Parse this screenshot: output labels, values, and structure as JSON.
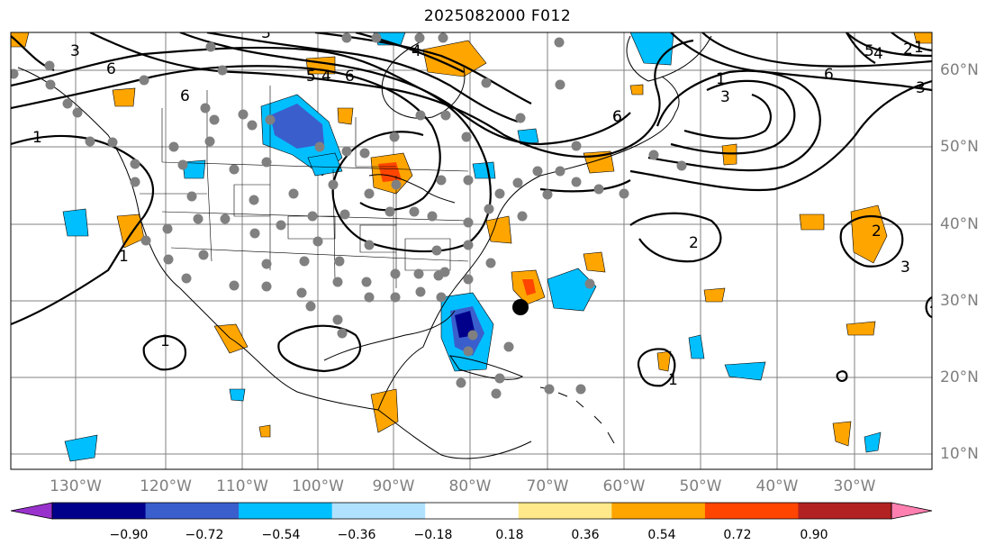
{
  "title": "2025082000 F012",
  "longitude_labels": [
    "130°W",
    "120°W",
    "110°W",
    "100°W",
    "90°W",
    "80°W",
    "70°W",
    "60°W",
    "50°W",
    "40°W",
    "30°W"
  ],
  "latitude_labels": [
    "60°N",
    "50°N",
    "40°N",
    "30°N",
    "20°N",
    "10°N"
  ],
  "colorbar": {
    "ticks": [
      "−0.90",
      "−0.72",
      "−0.54",
      "−0.36",
      "−0.18",
      "0.18",
      "0.36",
      "0.54",
      "0.72",
      "0.90"
    ],
    "colors": [
      "#9932cc",
      "#00008b",
      "#3a5fcd",
      "#00bfff",
      "#b0e2ff",
      "#ffffff",
      "#ffe98a",
      "#ffa500",
      "#ff4500",
      "#b22222",
      "#ff80b0"
    ]
  },
  "contour_labels": [
    "3",
    "6",
    "6",
    "3",
    "1",
    "5",
    "4",
    "6",
    "3",
    "4",
    "1",
    "6",
    "1",
    "3",
    "6",
    "5",
    "4",
    "2",
    "3",
    "6",
    "2",
    "2",
    "1",
    "1",
    "1",
    "2"
  ],
  "colors": {
    "positive": "#ffa500",
    "negative": "#00bfff",
    "station": "#808080",
    "storm_marker": "#000000"
  }
}
